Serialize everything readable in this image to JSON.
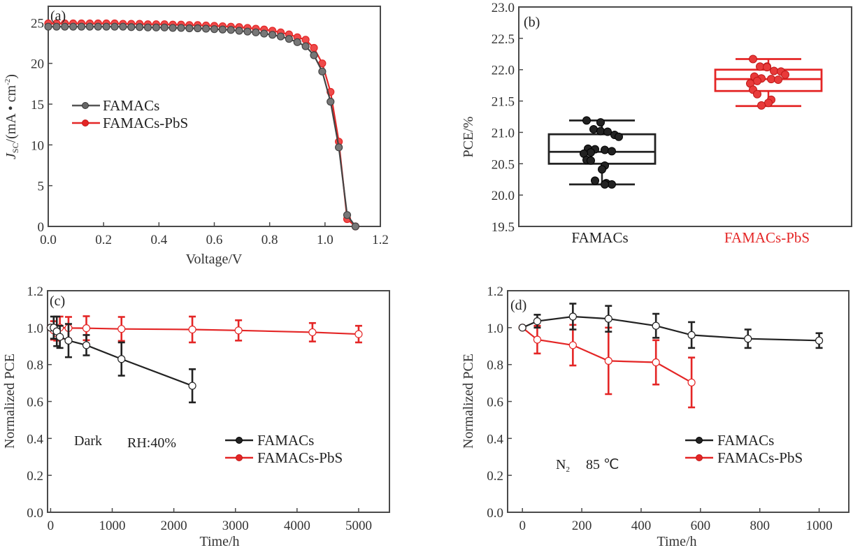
{
  "colors": {
    "famacs": "#222222",
    "famacs_jv": "#555555",
    "pbs": "#e42626",
    "axis": "#4a4a4a"
  },
  "chart_data": [
    {
      "id": "a",
      "type": "line",
      "panel_label": "(a)",
      "title": "",
      "xlabel": "Voltage/V",
      "ylabel_main": "J",
      "ylabel_sub": "SC",
      "ylabel_rest": "/(mA • cm",
      "ylabel_sup": "-2",
      "ylabel_close": ")",
      "xlim": [
        0,
        1.2
      ],
      "ylim": [
        0,
        27
      ],
      "xticks": [
        0.0,
        0.2,
        0.4,
        0.6,
        0.8,
        1.0,
        1.2
      ],
      "xtick_labels": [
        "0.0",
        "0.2",
        "0.4",
        "0.6",
        "0.8",
        "1.0",
        "1.2"
      ],
      "yticks": [
        0,
        5,
        10,
        15,
        20,
        25
      ],
      "ytick_labels": [
        "0",
        "5",
        "10",
        "15",
        "20",
        "25"
      ],
      "legend": [
        "FAMACs",
        "FAMACs-PbS"
      ],
      "legend_position": "center-left",
      "series": [
        {
          "name": "FAMACs",
          "x": [
            0.0,
            0.03,
            0.06,
            0.09,
            0.12,
            0.15,
            0.18,
            0.21,
            0.24,
            0.27,
            0.3,
            0.33,
            0.36,
            0.39,
            0.42,
            0.45,
            0.48,
            0.51,
            0.54,
            0.57,
            0.6,
            0.63,
            0.66,
            0.69,
            0.72,
            0.75,
            0.78,
            0.81,
            0.84,
            0.87,
            0.9,
            0.93,
            0.96,
            0.99,
            1.02,
            1.05,
            1.08,
            1.11
          ],
          "y": [
            24.5,
            24.5,
            24.5,
            24.5,
            24.5,
            24.5,
            24.5,
            24.5,
            24.5,
            24.5,
            24.45,
            24.45,
            24.4,
            24.4,
            24.4,
            24.35,
            24.35,
            24.3,
            24.3,
            24.25,
            24.2,
            24.15,
            24.1,
            24.0,
            23.9,
            23.8,
            23.65,
            23.5,
            23.3,
            23.0,
            22.6,
            22.1,
            21.0,
            19.0,
            15.3,
            9.7,
            1.4,
            0.0
          ]
        },
        {
          "name": "FAMACs-PbS",
          "x": [
            0.0,
            0.03,
            0.06,
            0.09,
            0.12,
            0.15,
            0.18,
            0.21,
            0.24,
            0.27,
            0.3,
            0.33,
            0.36,
            0.39,
            0.42,
            0.45,
            0.48,
            0.51,
            0.54,
            0.57,
            0.6,
            0.63,
            0.66,
            0.69,
            0.72,
            0.75,
            0.78,
            0.81,
            0.84,
            0.87,
            0.9,
            0.93,
            0.96,
            0.99,
            1.02,
            1.05,
            1.08,
            1.11
          ],
          "y": [
            24.9,
            24.9,
            24.9,
            24.9,
            24.9,
            24.9,
            24.9,
            24.9,
            24.9,
            24.85,
            24.85,
            24.85,
            24.8,
            24.8,
            24.8,
            24.75,
            24.75,
            24.7,
            24.7,
            24.65,
            24.6,
            24.55,
            24.5,
            24.45,
            24.35,
            24.25,
            24.15,
            24.0,
            23.8,
            23.55,
            23.2,
            22.9,
            21.9,
            20.0,
            16.5,
            10.4,
            0.9,
            0.0
          ]
        }
      ]
    },
    {
      "id": "b",
      "type": "box",
      "panel_label": "(b)",
      "title": "",
      "xlabel": "",
      "ylabel": "PCE/%",
      "ylim": [
        19.5,
        23.0
      ],
      "yticks": [
        19.5,
        20.0,
        20.5,
        21.0,
        21.5,
        22.0,
        22.5,
        23.0
      ],
      "ytick_labels": [
        "19.5",
        "20.0",
        "20.5",
        "21.0",
        "21.5",
        "22.0",
        "22.5",
        "23.0"
      ],
      "categories": [
        "FAMACs",
        "FAMACs-PbS"
      ],
      "boxes": [
        {
          "name": "FAMACs",
          "whisker_low": 20.17,
          "q1": 20.5,
          "median": 20.69,
          "q3": 20.97,
          "whisker_high": 21.19,
          "points": [
            21.19,
            21.16,
            21.05,
            21.02,
            21.01,
            20.96,
            20.93,
            20.74,
            20.73,
            20.72,
            20.7,
            20.68,
            20.66,
            20.56,
            20.55,
            20.47,
            20.41,
            20.23,
            20.19,
            20.17,
            20.17
          ]
        },
        {
          "name": "FAMACs-PbS",
          "whisker_low": 21.42,
          "q1": 21.66,
          "median": 21.85,
          "q3": 22.0,
          "whisker_high": 22.17,
          "points": [
            22.17,
            22.05,
            22.05,
            22.04,
            21.98,
            21.97,
            21.92,
            21.89,
            21.86,
            21.85,
            21.84,
            21.82,
            21.78,
            21.68,
            21.61,
            21.52,
            21.47,
            21.43
          ]
        }
      ]
    },
    {
      "id": "c",
      "type": "line",
      "panel_label": "(c)",
      "title": "",
      "xlabel": "Time/h",
      "ylabel": "Normalized PCE",
      "xlim": [
        -50,
        5500
      ],
      "ylim": [
        0.0,
        1.2
      ],
      "xticks": [
        0,
        1000,
        2000,
        3000,
        4000,
        5000
      ],
      "xtick_labels": [
        "0",
        "1000",
        "2000",
        "3000",
        "4000",
        "5000"
      ],
      "yticks": [
        0.0,
        0.2,
        0.4,
        0.6,
        0.8,
        1.0,
        1.2
      ],
      "ytick_labels": [
        "0.0",
        "0.2",
        "0.4",
        "0.6",
        "0.8",
        "1.0",
        "1.2"
      ],
      "annotations": [
        "Dark",
        "RH:40%"
      ],
      "legend": [
        "FAMACs",
        "FAMACs-PbS"
      ],
      "legend_position": "lower-right",
      "series": [
        {
          "name": "FAMACs",
          "x": [
            0,
            50,
            100,
            150,
            290,
            580,
            1150,
            2300
          ],
          "y": [
            1.0,
            1.0,
            0.98,
            0.95,
            0.93,
            0.905,
            0.83,
            0.685
          ],
          "err": [
            0.0,
            0.06,
            0.08,
            0.06,
            0.09,
            0.055,
            0.09,
            0.09
          ]
        },
        {
          "name": "FAMACs-PbS",
          "x": [
            0,
            50,
            100,
            150,
            290,
            580,
            1150,
            2300,
            3050,
            4250,
            5000
          ],
          "y": [
            1.0,
            0.985,
            0.97,
            1.0,
            0.998,
            0.997,
            0.993,
            0.99,
            0.985,
            0.975,
            0.965
          ],
          "err": [
            0.0,
            0.05,
            0.04,
            0.06,
            0.06,
            0.065,
            0.065,
            0.07,
            0.055,
            0.05,
            0.045
          ]
        }
      ]
    },
    {
      "id": "d",
      "type": "line",
      "panel_label": "(d)",
      "title": "",
      "xlabel": "Time/h",
      "ylabel": "Normalized PCE",
      "xlim": [
        -50,
        1100
      ],
      "ylim": [
        0.0,
        1.2
      ],
      "xticks": [
        0,
        200,
        400,
        600,
        800,
        1000
      ],
      "xtick_labels": [
        "0",
        "200",
        "400",
        "600",
        "800",
        "1000"
      ],
      "yticks": [
        0.0,
        0.2,
        0.4,
        0.6,
        0.8,
        1.0,
        1.2
      ],
      "ytick_labels": [
        "0.0",
        "0.2",
        "0.4",
        "0.6",
        "0.8",
        "1.0",
        "1.2"
      ],
      "annotations": [
        "N",
        "2",
        "85 ℃"
      ],
      "legend": [
        "FAMACs",
        "FAMACs-PbS"
      ],
      "legend_position": "lower-right",
      "series": [
        {
          "name": "FAMACs",
          "x": [
            0,
            50,
            170,
            290,
            450,
            570,
            760,
            1000
          ],
          "y": [
            1.0,
            1.035,
            1.06,
            1.048,
            1.01,
            0.96,
            0.94,
            0.93
          ],
          "err": [
            0.0,
            0.035,
            0.07,
            0.07,
            0.065,
            0.07,
            0.05,
            0.04
          ]
        },
        {
          "name": "FAMACs-PbS",
          "x": [
            0,
            50,
            170,
            290,
            450,
            570
          ],
          "y": [
            1.0,
            0.935,
            0.905,
            0.82,
            0.812,
            0.703
          ],
          "err": [
            0.0,
            0.075,
            0.11,
            0.18,
            0.12,
            0.135
          ]
        }
      ]
    }
  ]
}
